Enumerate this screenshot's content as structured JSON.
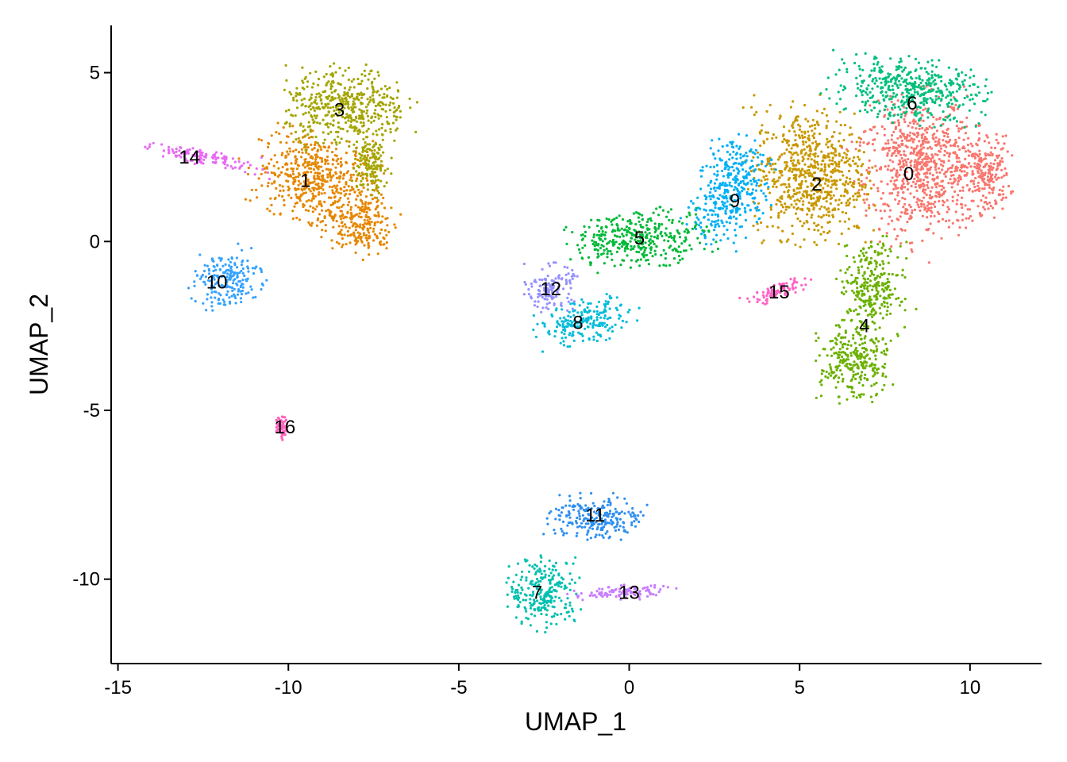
{
  "chart_data": {
    "type": "scatter",
    "xlabel": "UMAP_1",
    "ylabel": "UMAP_2",
    "xlim": [
      -15.2,
      12.1
    ],
    "ylim": [
      -12.5,
      6.4
    ],
    "xticks": [
      -15,
      -10,
      -5,
      0,
      5,
      10
    ],
    "yticks": [
      5,
      0,
      -5,
      -10
    ],
    "grid": false,
    "legend": "none",
    "clusters": [
      {
        "label": "0",
        "color": "#F8766D",
        "center": [
          8.2,
          2.0
        ],
        "blobs": [
          [
            8.6,
            2.2,
            1.6,
            1.8,
            0.25
          ],
          [
            10.5,
            2.0,
            0.6,
            1.0,
            0
          ]
        ]
      },
      {
        "label": "1",
        "color": "#E58700",
        "center": [
          -9.5,
          1.8
        ],
        "blobs": [
          [
            -9.2,
            1.9,
            1.6,
            1.1,
            -0.2
          ],
          [
            -8.0,
            0.5,
            0.9,
            0.8,
            -0.5
          ]
        ]
      },
      {
        "label": "2",
        "color": "#C99800",
        "center": [
          5.5,
          1.7
        ],
        "blobs": [
          [
            5.3,
            2.0,
            1.5,
            1.7,
            0
          ]
        ]
      },
      {
        "label": "3",
        "color": "#A3A500",
        "center": [
          -8.5,
          3.9
        ],
        "blobs": [
          [
            -8.3,
            4.0,
            1.6,
            1.0,
            0
          ],
          [
            -7.6,
            2.3,
            0.5,
            0.8,
            0
          ]
        ]
      },
      {
        "label": "4",
        "color": "#6BB100",
        "center": [
          6.9,
          -2.5
        ],
        "blobs": [
          [
            7.1,
            -1.4,
            0.8,
            1.2,
            0
          ],
          [
            6.6,
            -3.6,
            0.9,
            1.0,
            0
          ]
        ]
      },
      {
        "label": "5",
        "color": "#00BA38",
        "center": [
          0.3,
          0.1
        ],
        "blobs": [
          [
            0.3,
            0.1,
            1.8,
            0.7,
            0.1
          ]
        ]
      },
      {
        "label": "6",
        "color": "#00BF7D",
        "center": [
          8.3,
          4.1
        ],
        "blobs": [
          [
            8.2,
            4.5,
            2.0,
            0.8,
            -0.1
          ]
        ]
      },
      {
        "label": "7",
        "color": "#00C0AF",
        "center": [
          -2.7,
          -10.4
        ],
        "blobs": [
          [
            -2.5,
            -10.4,
            0.9,
            0.9,
            0
          ]
        ]
      },
      {
        "label": "8",
        "color": "#00BCD8",
        "center": [
          -1.5,
          -2.4
        ],
        "blobs": [
          [
            -1.3,
            -2.4,
            1.2,
            0.55,
            0.2
          ]
        ]
      },
      {
        "label": "9",
        "color": "#00B0F6",
        "center": [
          3.1,
          1.2
        ],
        "blobs": [
          [
            3.0,
            1.5,
            0.9,
            1.4,
            -0.4
          ]
        ]
      },
      {
        "label": "10",
        "color": "#35A2FF",
        "center": [
          -12.1,
          -1.2
        ],
        "blobs": [
          [
            -11.8,
            -1.1,
            0.9,
            0.7,
            0.3
          ]
        ]
      },
      {
        "label": "11",
        "color": "#2E8FF0",
        "center": [
          -1.0,
          -8.1
        ],
        "blobs": [
          [
            -1.0,
            -8.2,
            1.2,
            0.6,
            0
          ]
        ]
      },
      {
        "label": "12",
        "color": "#9590FF",
        "center": [
          -2.3,
          -1.4
        ],
        "blobs": [
          [
            -2.3,
            -1.4,
            0.6,
            0.6,
            0
          ]
        ]
      },
      {
        "label": "13",
        "color": "#C77CFF",
        "center": [
          0.0,
          -10.4
        ],
        "blobs": [
          [
            -0.3,
            -10.4,
            1.3,
            0.18,
            0.05
          ]
        ]
      },
      {
        "label": "14",
        "color": "#E76BF3",
        "center": [
          -12.9,
          2.5
        ],
        "blobs": [
          [
            -12.5,
            2.5,
            1.6,
            0.2,
            -0.2
          ]
        ]
      },
      {
        "label": "15",
        "color": "#FF61C3",
        "center": [
          4.4,
          -1.5
        ],
        "blobs": [
          [
            4.3,
            -1.5,
            0.9,
            0.2,
            0.4
          ]
        ]
      },
      {
        "label": "16",
        "color": "#FF62BC",
        "center": [
          -10.1,
          -5.5
        ],
        "blobs": [
          [
            -10.2,
            -5.5,
            0.15,
            0.3,
            0
          ]
        ]
      }
    ]
  }
}
